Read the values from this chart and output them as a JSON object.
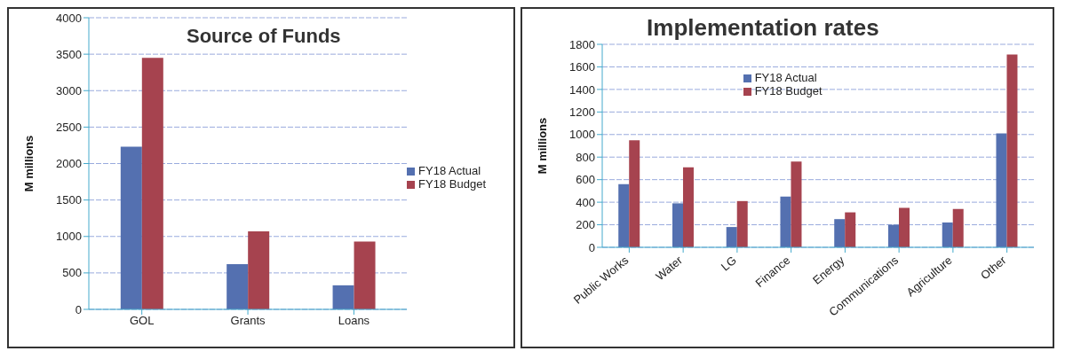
{
  "chart_data": [
    {
      "type": "bar",
      "title": "Source of Funds",
      "ylabel": "M millions",
      "categories": [
        "GOL",
        "Grants",
        "Loans"
      ],
      "series": [
        {
          "name": "FY18 Actual",
          "color": "#5470b0",
          "values": [
            2230,
            620,
            330
          ]
        },
        {
          "name": "FY18 Budget",
          "color": "#a6434f",
          "values": [
            3450,
            1070,
            930
          ]
        }
      ],
      "ylim": [
        0,
        4000
      ],
      "yticks": [
        0,
        500,
        1000,
        1500,
        2000,
        2500,
        3000,
        3500,
        4000
      ],
      "grid": "y",
      "legend": "right"
    },
    {
      "type": "bar",
      "title": "Implementation rates",
      "ylabel": "M millions",
      "categories": [
        "Public Works",
        "Water",
        "LG",
        "Finance",
        "Energy",
        "Communications",
        "Agriculture",
        "Other"
      ],
      "series": [
        {
          "name": "FY18 Actual",
          "color": "#5470b0",
          "values": [
            560,
            390,
            180,
            450,
            250,
            200,
            220,
            1010
          ]
        },
        {
          "name": "FY18 Budget",
          "color": "#a6434f",
          "values": [
            950,
            710,
            410,
            760,
            310,
            350,
            340,
            1710
          ]
        }
      ],
      "ylim": [
        0,
        1800
      ],
      "yticks": [
        0,
        200,
        400,
        600,
        800,
        1000,
        1200,
        1400,
        1600,
        1800
      ],
      "grid": "y",
      "legend": "top"
    }
  ]
}
